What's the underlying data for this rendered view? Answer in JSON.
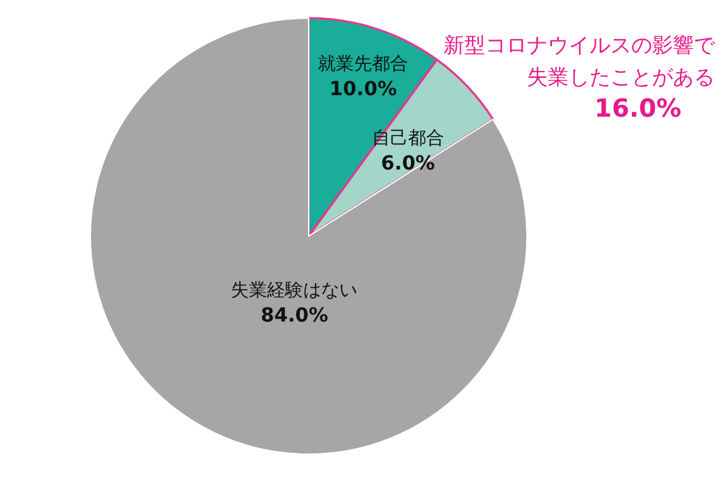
{
  "chart_data": {
    "type": "pie",
    "categories": [
      "就業先都合",
      "自己都合",
      "失業経験はない"
    ],
    "values": [
      10.0,
      6.0,
      84.0
    ],
    "value_labels": [
      "10.0%",
      "6.0%",
      "84.0%"
    ],
    "colors": [
      "#1aae9a",
      "#a3d6c9",
      "#a6a6a6"
    ],
    "annotations": [
      "新型コロナウイルスの影響で",
      "失業したことがある",
      "16.0%"
    ],
    "legend": false
  }
}
